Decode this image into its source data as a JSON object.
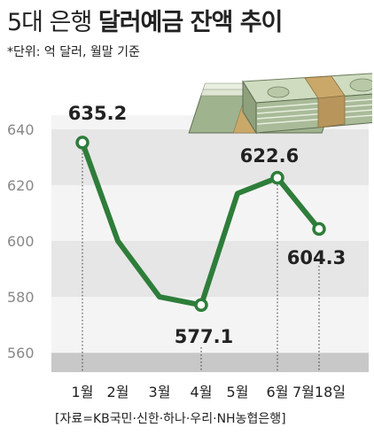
{
  "header": {
    "title_light": "5대 은행",
    "title_bold": "달러예금 잔액 추이",
    "subtitle": "*단위: 억 달러, 월말 기준"
  },
  "source": "[자료=KB국민·신한·하나·우리·NH농협은행]",
  "colors": {
    "line": "#2e7d3a",
    "marker_fill": "#ffffff",
    "band_light": "#f4f4f4",
    "band_dark": "#e6e6e6",
    "bottom_band": "#c8c8c8",
    "text": "#222222",
    "tick": "#888888"
  },
  "chart_data": {
    "type": "line",
    "title": "달러예금 잔액 추이",
    "categories": [
      "1월",
      "2월",
      "3월",
      "4월",
      "5월",
      "6월",
      "7월18일"
    ],
    "series": [
      {
        "values": [
          635.2,
          600,
          580,
          577.1,
          617,
          622.6,
          604.3
        ]
      }
    ],
    "labeled_points": [
      {
        "index": 0,
        "label": "635.2"
      },
      {
        "index": 3,
        "label": "577.1"
      },
      {
        "index": 5,
        "label": "622.6"
      },
      {
        "index": 6,
        "label": "604.3"
      }
    ],
    "yticks": [
      560,
      580,
      600,
      620,
      640
    ],
    "ylim": [
      555,
      645
    ],
    "grid": true
  }
}
